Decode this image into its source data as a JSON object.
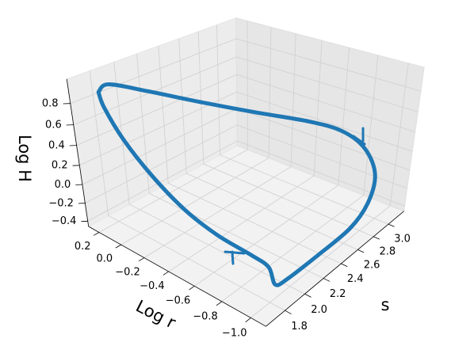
{
  "chart_data": {
    "type": "line3d",
    "xlabel": "s",
    "ylabel": "Log r",
    "zlabel": "Log H",
    "series": [
      {
        "color": "#1f77b4",
        "x": [
          1.83,
          1.9,
          2.01,
          2.17,
          2.39,
          2.66,
          2.82,
          2.89,
          2.81,
          2.71,
          2.55,
          2.26,
          2.04,
          1.94,
          2.03,
          2.01,
          1.99,
          1.96,
          1.95,
          1.91,
          1.86,
          1.83
        ],
        "y": [
          0.28,
          0.26,
          0.04,
          -0.21,
          -0.46,
          -0.68,
          -0.82,
          -0.94,
          -1.06,
          -1.08,
          -1.06,
          -1.02,
          -0.96,
          -0.94,
          -0.83,
          -0.72,
          -0.48,
          -0.25,
          0.0,
          0.19,
          0.28,
          0.28
        ],
        "z": [
          0.82,
          0.87,
          0.85,
          0.79,
          0.7,
          0.58,
          0.47,
          0.32,
          0.17,
          -0.05,
          -0.22,
          -0.32,
          -0.44,
          -0.44,
          -0.41,
          -0.35,
          -0.29,
          -0.15,
          0.06,
          0.36,
          0.66,
          0.82
        ]
      }
    ],
    "xlim": [
      1.62,
      3.22
    ],
    "ylim": [
      -1.1,
      0.3
    ],
    "zlim": [
      -0.46,
      1.02
    ],
    "xticks": [
      1.8,
      {
        "value": 2,
        "label": "2.0"
      },
      2.2,
      2.4,
      2.6,
      2.8,
      {
        "value": 3,
        "label": "3.0"
      }
    ],
    "yticks": [
      0.2,
      {
        "value": 0,
        "label": "0.0"
      },
      {
        "value": -0.2,
        "label": "−0.2"
      },
      {
        "value": -0.4,
        "label": "−0.4"
      },
      {
        "value": -0.6,
        "label": "−0.6"
      },
      {
        "value": -0.8,
        "label": "−0.8"
      },
      {
        "value": -1,
        "label": "−1.0"
      }
    ],
    "zticks": [
      0.8,
      0.6,
      0.4,
      0.2,
      {
        "value": 0,
        "label": "0.0"
      },
      {
        "value": -0.2,
        "label": "−0.2"
      },
      {
        "value": -0.4,
        "label": "−0.4"
      }
    ],
    "grid": true
  }
}
